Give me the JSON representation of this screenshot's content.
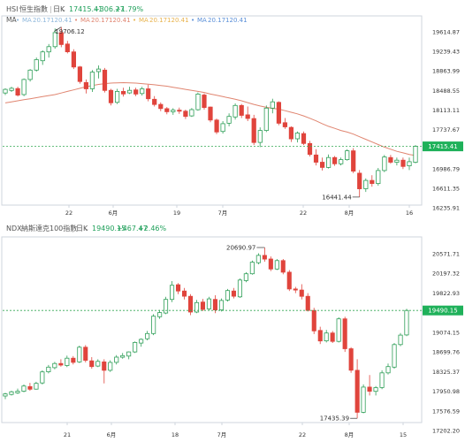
{
  "colors": {
    "up": "#2e9e57",
    "down": "#e0443c",
    "ma": "#e08570",
    "price_line": "#34a853",
    "price_badge": "#1fb15a",
    "border": "#cfd4dc",
    "axis_text": "#333333",
    "muted": "#8c8c8c",
    "up_text": "#1fa05a"
  },
  "panels": [
    {
      "code": "HSI",
      "name": "恒生指數",
      "period": "日K",
      "last": "17415.41",
      "change": "+306.27",
      "change_pct": "+1.79%",
      "ma_label": "MA",
      "ma_items": [
        {
          "name": "MA",
          "value": "20.17120.41",
          "color": "#8fb8dc"
        },
        {
          "name": "MA",
          "value": "20.17120.41",
          "color": "#e08570"
        },
        {
          "name": "MA",
          "value": "20.17120.41",
          "color": "#e8b24c"
        },
        {
          "name": "MA",
          "value": "20.17120.41",
          "color": "#5a8fd8"
        }
      ],
      "price_tag": "17415.41",
      "hi_label": "19706.12",
      "lo_label": "16441.44",
      "y_ticks": [
        "19614.87",
        "19239.43",
        "18863.99",
        "18488.55",
        "18113.11",
        "17737.67",
        "17362.22",
        "16986.79",
        "16611.35",
        "16235.91"
      ],
      "x_ticks": [
        "22",
        "6月",
        "19",
        "7月",
        "22",
        "8月",
        "16"
      ]
    },
    {
      "code": "NDX",
      "name": "納斯達克100指數",
      "period": "日K",
      "last": "19490.15",
      "change": "+467.47",
      "change_pct": "+2.46%",
      "price_tag": "19490.15",
      "hi_label": "20690.97",
      "lo_label": "17435.39",
      "y_ticks": [
        "20571.71",
        "20197.32",
        "19822.93",
        "19448.54",
        "19074.15",
        "18699.76",
        "18325.37",
        "17950.98",
        "17576.59",
        "17202.20"
      ],
      "x_ticks": [
        "21",
        "6月",
        "18",
        "7月",
        "22",
        "8月",
        "15"
      ]
    }
  ],
  "chart_data": [
    {
      "type": "candlestick",
      "title": "HSI 恒生指數 日K",
      "ylim": [
        16235.91,
        19614.87
      ],
      "x_ticks": [
        "22",
        "6月",
        "19",
        "7月",
        "22",
        "8月",
        "16"
      ],
      "ma_series_name": "MA",
      "candles": [
        {
          "o": 18440,
          "h": 18530,
          "l": 18400,
          "c": 18510
        },
        {
          "o": 18490,
          "h": 18560,
          "l": 18460,
          "c": 18530
        },
        {
          "o": 18525,
          "h": 18560,
          "l": 18370,
          "c": 18400
        },
        {
          "o": 18410,
          "h": 18720,
          "l": 18380,
          "c": 18700
        },
        {
          "o": 18700,
          "h": 18900,
          "l": 18660,
          "c": 18880
        },
        {
          "o": 18880,
          "h": 19120,
          "l": 18850,
          "c": 19080
        },
        {
          "o": 19060,
          "h": 19260,
          "l": 18980,
          "c": 19230
        },
        {
          "o": 19230,
          "h": 19380,
          "l": 19120,
          "c": 19330
        },
        {
          "o": 19330,
          "h": 19680,
          "l": 19290,
          "c": 19600
        },
        {
          "o": 19600,
          "h": 19706,
          "l": 19320,
          "c": 19370
        },
        {
          "o": 19380,
          "h": 19440,
          "l": 19200,
          "c": 19230
        },
        {
          "o": 19230,
          "h": 19280,
          "l": 18900,
          "c": 18940
        },
        {
          "o": 18940,
          "h": 18960,
          "l": 18620,
          "c": 18660
        },
        {
          "o": 18640,
          "h": 18700,
          "l": 18430,
          "c": 18520
        },
        {
          "o": 18520,
          "h": 18880,
          "l": 18460,
          "c": 18840
        },
        {
          "o": 18850,
          "h": 18970,
          "l": 18720,
          "c": 18900
        },
        {
          "o": 18880,
          "h": 18920,
          "l": 18450,
          "c": 18490
        },
        {
          "o": 18490,
          "h": 18520,
          "l": 18200,
          "c": 18250
        },
        {
          "o": 18260,
          "h": 18520,
          "l": 18230,
          "c": 18470
        },
        {
          "o": 18470,
          "h": 18540,
          "l": 18370,
          "c": 18420
        },
        {
          "o": 18440,
          "h": 18560,
          "l": 18420,
          "c": 18490
        },
        {
          "o": 18500,
          "h": 18540,
          "l": 18380,
          "c": 18420
        },
        {
          "o": 18430,
          "h": 18560,
          "l": 18390,
          "c": 18520
        },
        {
          "o": 18520,
          "h": 18600,
          "l": 18280,
          "c": 18330
        },
        {
          "o": 18320,
          "h": 18380,
          "l": 18180,
          "c": 18220
        },
        {
          "o": 18220,
          "h": 18260,
          "l": 18090,
          "c": 18140
        },
        {
          "o": 18140,
          "h": 18170,
          "l": 18030,
          "c": 18080
        },
        {
          "o": 18080,
          "h": 18150,
          "l": 18020,
          "c": 18110
        },
        {
          "o": 18110,
          "h": 18160,
          "l": 18040,
          "c": 18090
        },
        {
          "o": 18090,
          "h": 18120,
          "l": 17940,
          "c": 17990
        },
        {
          "o": 18000,
          "h": 18150,
          "l": 17980,
          "c": 18120
        },
        {
          "o": 18120,
          "h": 18450,
          "l": 18100,
          "c": 18420
        },
        {
          "o": 18400,
          "h": 18430,
          "l": 18120,
          "c": 18160
        },
        {
          "o": 18170,
          "h": 18180,
          "l": 17880,
          "c": 17920
        },
        {
          "o": 17920,
          "h": 17950,
          "l": 17650,
          "c": 17690
        },
        {
          "o": 17700,
          "h": 17900,
          "l": 17660,
          "c": 17850
        },
        {
          "o": 17860,
          "h": 18050,
          "l": 17800,
          "c": 17990
        },
        {
          "o": 17980,
          "h": 18240,
          "l": 17930,
          "c": 18200
        },
        {
          "o": 18200,
          "h": 18230,
          "l": 17960,
          "c": 18010
        },
        {
          "o": 18020,
          "h": 18180,
          "l": 17900,
          "c": 17950
        },
        {
          "o": 17950,
          "h": 18020,
          "l": 17440,
          "c": 17490
        },
        {
          "o": 17490,
          "h": 17780,
          "l": 17400,
          "c": 17720
        },
        {
          "o": 17720,
          "h": 18200,
          "l": 17690,
          "c": 18150
        },
        {
          "o": 18150,
          "h": 18330,
          "l": 18050,
          "c": 18270
        },
        {
          "o": 18260,
          "h": 18280,
          "l": 17820,
          "c": 17860
        },
        {
          "o": 17870,
          "h": 17960,
          "l": 17750,
          "c": 17790
        },
        {
          "o": 17780,
          "h": 17800,
          "l": 17500,
          "c": 17560
        },
        {
          "o": 17560,
          "h": 17700,
          "l": 17490,
          "c": 17670
        },
        {
          "o": 17660,
          "h": 17700,
          "l": 17440,
          "c": 17470
        },
        {
          "o": 17470,
          "h": 17520,
          "l": 17220,
          "c": 17260
        },
        {
          "o": 17250,
          "h": 17360,
          "l": 17050,
          "c": 17110
        },
        {
          "o": 17110,
          "h": 17200,
          "l": 16950,
          "c": 17010
        },
        {
          "o": 17010,
          "h": 17260,
          "l": 16990,
          "c": 17200
        },
        {
          "o": 17200,
          "h": 17230,
          "l": 17040,
          "c": 17080
        },
        {
          "o": 17080,
          "h": 17200,
          "l": 17050,
          "c": 17160
        },
        {
          "o": 17160,
          "h": 17360,
          "l": 17140,
          "c": 17330
        },
        {
          "o": 17330,
          "h": 17380,
          "l": 16900,
          "c": 16940
        },
        {
          "o": 16900,
          "h": 16960,
          "l": 16441,
          "c": 16600
        },
        {
          "o": 16600,
          "h": 16800,
          "l": 16540,
          "c": 16760
        },
        {
          "o": 16760,
          "h": 16860,
          "l": 16640,
          "c": 16700
        },
        {
          "o": 16700,
          "h": 17000,
          "l": 16660,
          "c": 16950
        },
        {
          "o": 16950,
          "h": 17250,
          "l": 16920,
          "c": 17210
        },
        {
          "o": 17200,
          "h": 17250,
          "l": 17080,
          "c": 17110
        },
        {
          "o": 17110,
          "h": 17200,
          "l": 17050,
          "c": 17150
        },
        {
          "o": 17150,
          "h": 17200,
          "l": 16980,
          "c": 17030
        },
        {
          "o": 17040,
          "h": 17200,
          "l": 16960,
          "c": 17120
        },
        {
          "o": 17109,
          "h": 17440,
          "l": 17090,
          "c": 17415
        }
      ],
      "ma": [
        18250,
        18270,
        18290,
        18310,
        18330,
        18350,
        18370,
        18390,
        18410,
        18440,
        18470,
        18500,
        18530,
        18560,
        18585,
        18605,
        18620,
        18630,
        18635,
        18638,
        18635,
        18630,
        18620,
        18610,
        18598,
        18585,
        18570,
        18550,
        18530,
        18510,
        18490,
        18470,
        18450,
        18420,
        18395,
        18370,
        18345,
        18320,
        18290,
        18255,
        18220,
        18190,
        18165,
        18145,
        18130,
        18100,
        18070,
        18040,
        18000,
        17955,
        17905,
        17850,
        17800,
        17760,
        17720,
        17690,
        17650,
        17600,
        17550,
        17500,
        17450,
        17400,
        17360,
        17320,
        17290,
        17260,
        17240
      ]
    },
    {
      "type": "candlestick",
      "title": "NDX 納斯達克100指數 日K",
      "ylim": [
        17202.2,
        20571.71
      ],
      "x_ticks": [
        "21",
        "6月",
        "18",
        "7月",
        "22",
        "8月",
        "15"
      ],
      "candles": [
        {
          "o": 17860,
          "h": 17920,
          "l": 17800,
          "c": 17900
        },
        {
          "o": 17890,
          "h": 17960,
          "l": 17870,
          "c": 17940
        },
        {
          "o": 17920,
          "h": 18000,
          "l": 17900,
          "c": 17950
        },
        {
          "o": 17950,
          "h": 18080,
          "l": 17930,
          "c": 18050
        },
        {
          "o": 18040,
          "h": 18110,
          "l": 17960,
          "c": 17990
        },
        {
          "o": 17990,
          "h": 18130,
          "l": 17980,
          "c": 18100
        },
        {
          "o": 18110,
          "h": 18350,
          "l": 18080,
          "c": 18320
        },
        {
          "o": 18320,
          "h": 18450,
          "l": 18290,
          "c": 18410
        },
        {
          "o": 18400,
          "h": 18510,
          "l": 18370,
          "c": 18480
        },
        {
          "o": 18480,
          "h": 18560,
          "l": 18420,
          "c": 18450
        },
        {
          "o": 18440,
          "h": 18630,
          "l": 18410,
          "c": 18580
        },
        {
          "o": 18580,
          "h": 18620,
          "l": 18460,
          "c": 18500
        },
        {
          "o": 18510,
          "h": 18820,
          "l": 18490,
          "c": 18790
        },
        {
          "o": 18790,
          "h": 18830,
          "l": 18500,
          "c": 18540
        },
        {
          "o": 18530,
          "h": 18600,
          "l": 18380,
          "c": 18420
        },
        {
          "o": 18430,
          "h": 18560,
          "l": 18410,
          "c": 18520
        },
        {
          "o": 18510,
          "h": 18560,
          "l": 18100,
          "c": 18350
        },
        {
          "o": 18350,
          "h": 18540,
          "l": 18320,
          "c": 18500
        },
        {
          "o": 18500,
          "h": 18640,
          "l": 18460,
          "c": 18600
        },
        {
          "o": 18600,
          "h": 18680,
          "l": 18570,
          "c": 18630
        },
        {
          "o": 18620,
          "h": 18710,
          "l": 18560,
          "c": 18700
        },
        {
          "o": 18700,
          "h": 18900,
          "l": 18680,
          "c": 18880
        },
        {
          "o": 18870,
          "h": 18960,
          "l": 18800,
          "c": 18940
        },
        {
          "o": 18950,
          "h": 19100,
          "l": 18920,
          "c": 19050
        },
        {
          "o": 19050,
          "h": 19420,
          "l": 19020,
          "c": 19380
        },
        {
          "o": 19370,
          "h": 19500,
          "l": 19330,
          "c": 19450
        },
        {
          "o": 19440,
          "h": 19750,
          "l": 19420,
          "c": 19700
        },
        {
          "o": 19700,
          "h": 20050,
          "l": 19650,
          "c": 19970
        },
        {
          "o": 19980,
          "h": 20010,
          "l": 19800,
          "c": 19860
        },
        {
          "o": 19860,
          "h": 19920,
          "l": 19700,
          "c": 19760
        },
        {
          "o": 19760,
          "h": 19800,
          "l": 19400,
          "c": 19460
        },
        {
          "o": 19460,
          "h": 19690,
          "l": 19440,
          "c": 19640
        },
        {
          "o": 19650,
          "h": 19710,
          "l": 19480,
          "c": 19510
        },
        {
          "o": 19520,
          "h": 19750,
          "l": 19500,
          "c": 19710
        },
        {
          "o": 19700,
          "h": 19780,
          "l": 19440,
          "c": 19500
        },
        {
          "o": 19500,
          "h": 19720,
          "l": 19470,
          "c": 19680
        },
        {
          "o": 19690,
          "h": 19900,
          "l": 19660,
          "c": 19870
        },
        {
          "o": 19860,
          "h": 19920,
          "l": 19720,
          "c": 19760
        },
        {
          "o": 19750,
          "h": 20100,
          "l": 19730,
          "c": 20070
        },
        {
          "o": 20060,
          "h": 20220,
          "l": 20030,
          "c": 20190
        },
        {
          "o": 20190,
          "h": 20440,
          "l": 20170,
          "c": 20410
        },
        {
          "o": 20400,
          "h": 20580,
          "l": 20370,
          "c": 20540
        },
        {
          "o": 20540,
          "h": 20690,
          "l": 20420,
          "c": 20470
        },
        {
          "o": 20470,
          "h": 20520,
          "l": 20240,
          "c": 20280
        },
        {
          "o": 20280,
          "h": 20470,
          "l": 20260,
          "c": 20440
        },
        {
          "o": 20440,
          "h": 20470,
          "l": 20180,
          "c": 20220
        },
        {
          "o": 20220,
          "h": 20260,
          "l": 19860,
          "c": 19900
        },
        {
          "o": 19900,
          "h": 19940,
          "l": 19820,
          "c": 19880
        },
        {
          "o": 19880,
          "h": 19990,
          "l": 19700,
          "c": 19760
        },
        {
          "o": 19760,
          "h": 19820,
          "l": 19470,
          "c": 19490
        },
        {
          "o": 19490,
          "h": 19540,
          "l": 19040,
          "c": 19100
        },
        {
          "o": 19110,
          "h": 19180,
          "l": 18850,
          "c": 18910
        },
        {
          "o": 18910,
          "h": 19120,
          "l": 18880,
          "c": 19060
        },
        {
          "o": 19060,
          "h": 19100,
          "l": 18870,
          "c": 18900
        },
        {
          "o": 18900,
          "h": 19360,
          "l": 18880,
          "c": 19330
        },
        {
          "o": 19330,
          "h": 19370,
          "l": 18700,
          "c": 18760
        },
        {
          "o": 18760,
          "h": 18790,
          "l": 18300,
          "c": 18350
        },
        {
          "o": 18350,
          "h": 18560,
          "l": 17435,
          "c": 17550
        },
        {
          "o": 17550,
          "h": 18080,
          "l": 17530,
          "c": 18030
        },
        {
          "o": 18030,
          "h": 18260,
          "l": 17870,
          "c": 17950
        },
        {
          "o": 17950,
          "h": 18050,
          "l": 17870,
          "c": 18020
        },
        {
          "o": 18020,
          "h": 18350,
          "l": 17990,
          "c": 18300
        },
        {
          "o": 18300,
          "h": 18480,
          "l": 18270,
          "c": 18420
        },
        {
          "o": 18410,
          "h": 18870,
          "l": 18380,
          "c": 18840
        },
        {
          "o": 18840,
          "h": 19060,
          "l": 18810,
          "c": 19020
        },
        {
          "o": 19023,
          "h": 19520,
          "l": 19000,
          "c": 19490
        }
      ]
    }
  ]
}
